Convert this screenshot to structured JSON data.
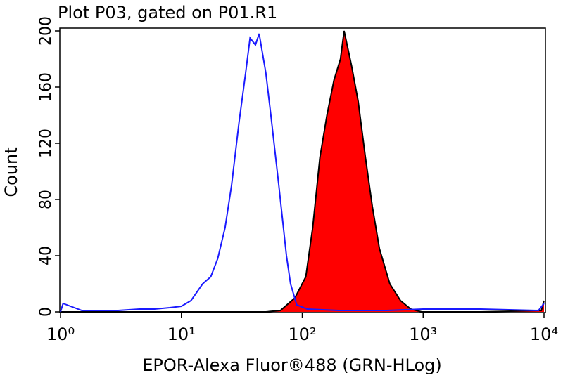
{
  "chart_data": {
    "type": "histogram-overlay",
    "title": "Plot P03, gated on P01.R1",
    "x_label": "EPOR-Alexa Fluor®488 (GRN-HLog)",
    "y_label": "Count",
    "log_x": true,
    "xlim": [
      1,
      10000
    ],
    "xticks": [
      {
        "value": 1,
        "label": "10⁰"
      },
      {
        "value": 10,
        "label": "10¹"
      },
      {
        "value": 100,
        "label": "10²"
      },
      {
        "value": 1000,
        "label": "10³"
      },
      {
        "value": 10000,
        "label": "10⁴"
      }
    ],
    "ylim": [
      0,
      202
    ],
    "yticks": [
      0,
      40,
      80,
      120,
      160,
      200
    ],
    "series": [
      {
        "color": "#1a1aff",
        "x": [
          1,
          1.05,
          1.5,
          2,
          3,
          4.5,
          6,
          8,
          10,
          12,
          15,
          17.5,
          20,
          23,
          26,
          30,
          34,
          37,
          41,
          44,
          50,
          55,
          64,
          74,
          80,
          90,
          110,
          200,
          500,
          1000,
          3000,
          9000,
          10000
        ],
        "values": [
          0,
          6,
          1,
          1,
          1,
          2,
          2,
          3,
          4,
          8,
          20,
          25,
          38,
          60,
          90,
          135,
          170,
          195,
          190,
          198,
          170,
          140,
          90,
          40,
          20,
          5,
          2,
          1,
          1,
          2,
          2,
          1,
          6
        ]
      },
      {
        "color": "#000000",
        "fill": "#ff0000",
        "x": [
          1,
          50,
          66,
          87,
          107,
          122,
          140,
          160,
          183,
          207,
          222,
          256,
          290,
          333,
          380,
          435,
          530,
          650,
          790,
          975,
          3000,
          9500,
          10000
        ],
        "values": [
          0,
          0,
          1,
          10,
          25,
          60,
          110,
          140,
          165,
          180,
          200,
          175,
          150,
          110,
          75,
          45,
          20,
          8,
          2,
          0,
          0,
          1,
          8
        ]
      }
    ]
  }
}
